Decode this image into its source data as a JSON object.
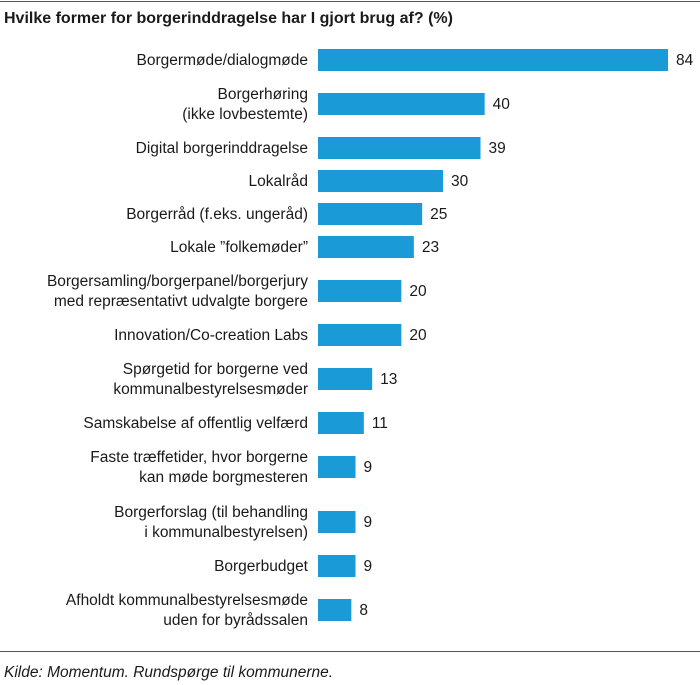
{
  "chart_data": {
    "type": "bar",
    "orientation": "horizontal",
    "title": "Hvilke former for borgerinddragelse har I gjort brug af? (%)",
    "source": "Kilde: Momentum. Rundspørge til kommunerne.",
    "color": "#1b9ad8",
    "categories": [
      "Borgermøde/dialogmøde",
      "Borgerhøring\n(ikke lovbestemte)",
      "Digital borgerinddragelse",
      "Lokalråd",
      "Borgerråd (f.eks. ungeråd)",
      "Lokale ”folkemøder”",
      "Borgersamling/borgerpanel/borgerjury\nmed repræsentativt udvalgte borgere",
      "Innovation/Co-creation Labs",
      "Spørgetid for borgerne ved\nkommunalbestyrelsesmøder",
      "Samskabelse af offentlig velfærd",
      "Faste træffetider, hvor borgerne\nkan møde borgmesteren",
      "Borgerforslag (til behandling\ni kommunalbestyrelsen)",
      "Borgerbudget",
      "Afholdt kommunalbestyrelsesmøde\nuden for byrådssalen"
    ],
    "values": [
      84,
      40,
      39,
      30,
      25,
      23,
      20,
      20,
      13,
      11,
      9,
      9,
      9,
      8
    ]
  }
}
